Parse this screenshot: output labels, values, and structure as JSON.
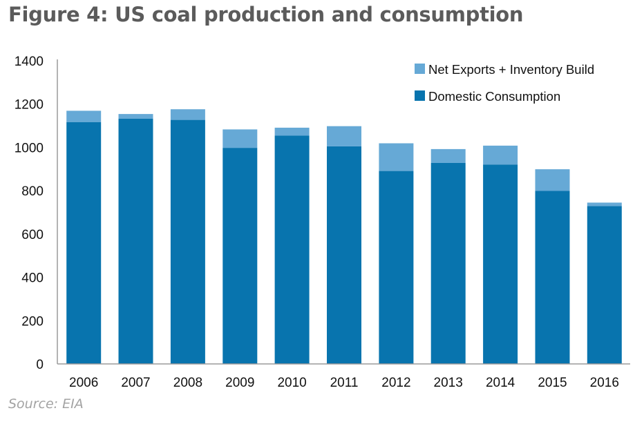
{
  "title": "Figure 4: US coal production and consumption",
  "source": "Source: EIA",
  "colors": {
    "domestic": "#0874ae",
    "exports": "#66a9d6",
    "axis": "#9a9a9a"
  },
  "chart_data": {
    "type": "bar",
    "stacked": true,
    "title": "Figure 4: US coal production and consumption",
    "xlabel": "",
    "ylabel": "",
    "ylim": [
      0,
      1400
    ],
    "yticks": [
      0,
      200,
      400,
      600,
      800,
      1000,
      1200,
      1400
    ],
    "grid": false,
    "legend_position": "top-right",
    "categories": [
      "2006",
      "2007",
      "2008",
      "2009",
      "2010",
      "2011",
      "2012",
      "2013",
      "2014",
      "2015",
      "2016"
    ],
    "series": [
      {
        "name": "Domestic Consumption",
        "color": "#0874ae",
        "values": [
          1117,
          1133,
          1127,
          998,
          1054,
          1005,
          891,
          928,
          921,
          799,
          729
        ]
      },
      {
        "name": "Net Exports + Inventory Build",
        "color": "#66a9d6",
        "values": [
          52,
          21,
          49,
          85,
          37,
          93,
          128,
          64,
          87,
          100,
          16
        ]
      }
    ],
    "legend": [
      "Net Exports + Inventory Build",
      "Domestic Consumption"
    ]
  }
}
